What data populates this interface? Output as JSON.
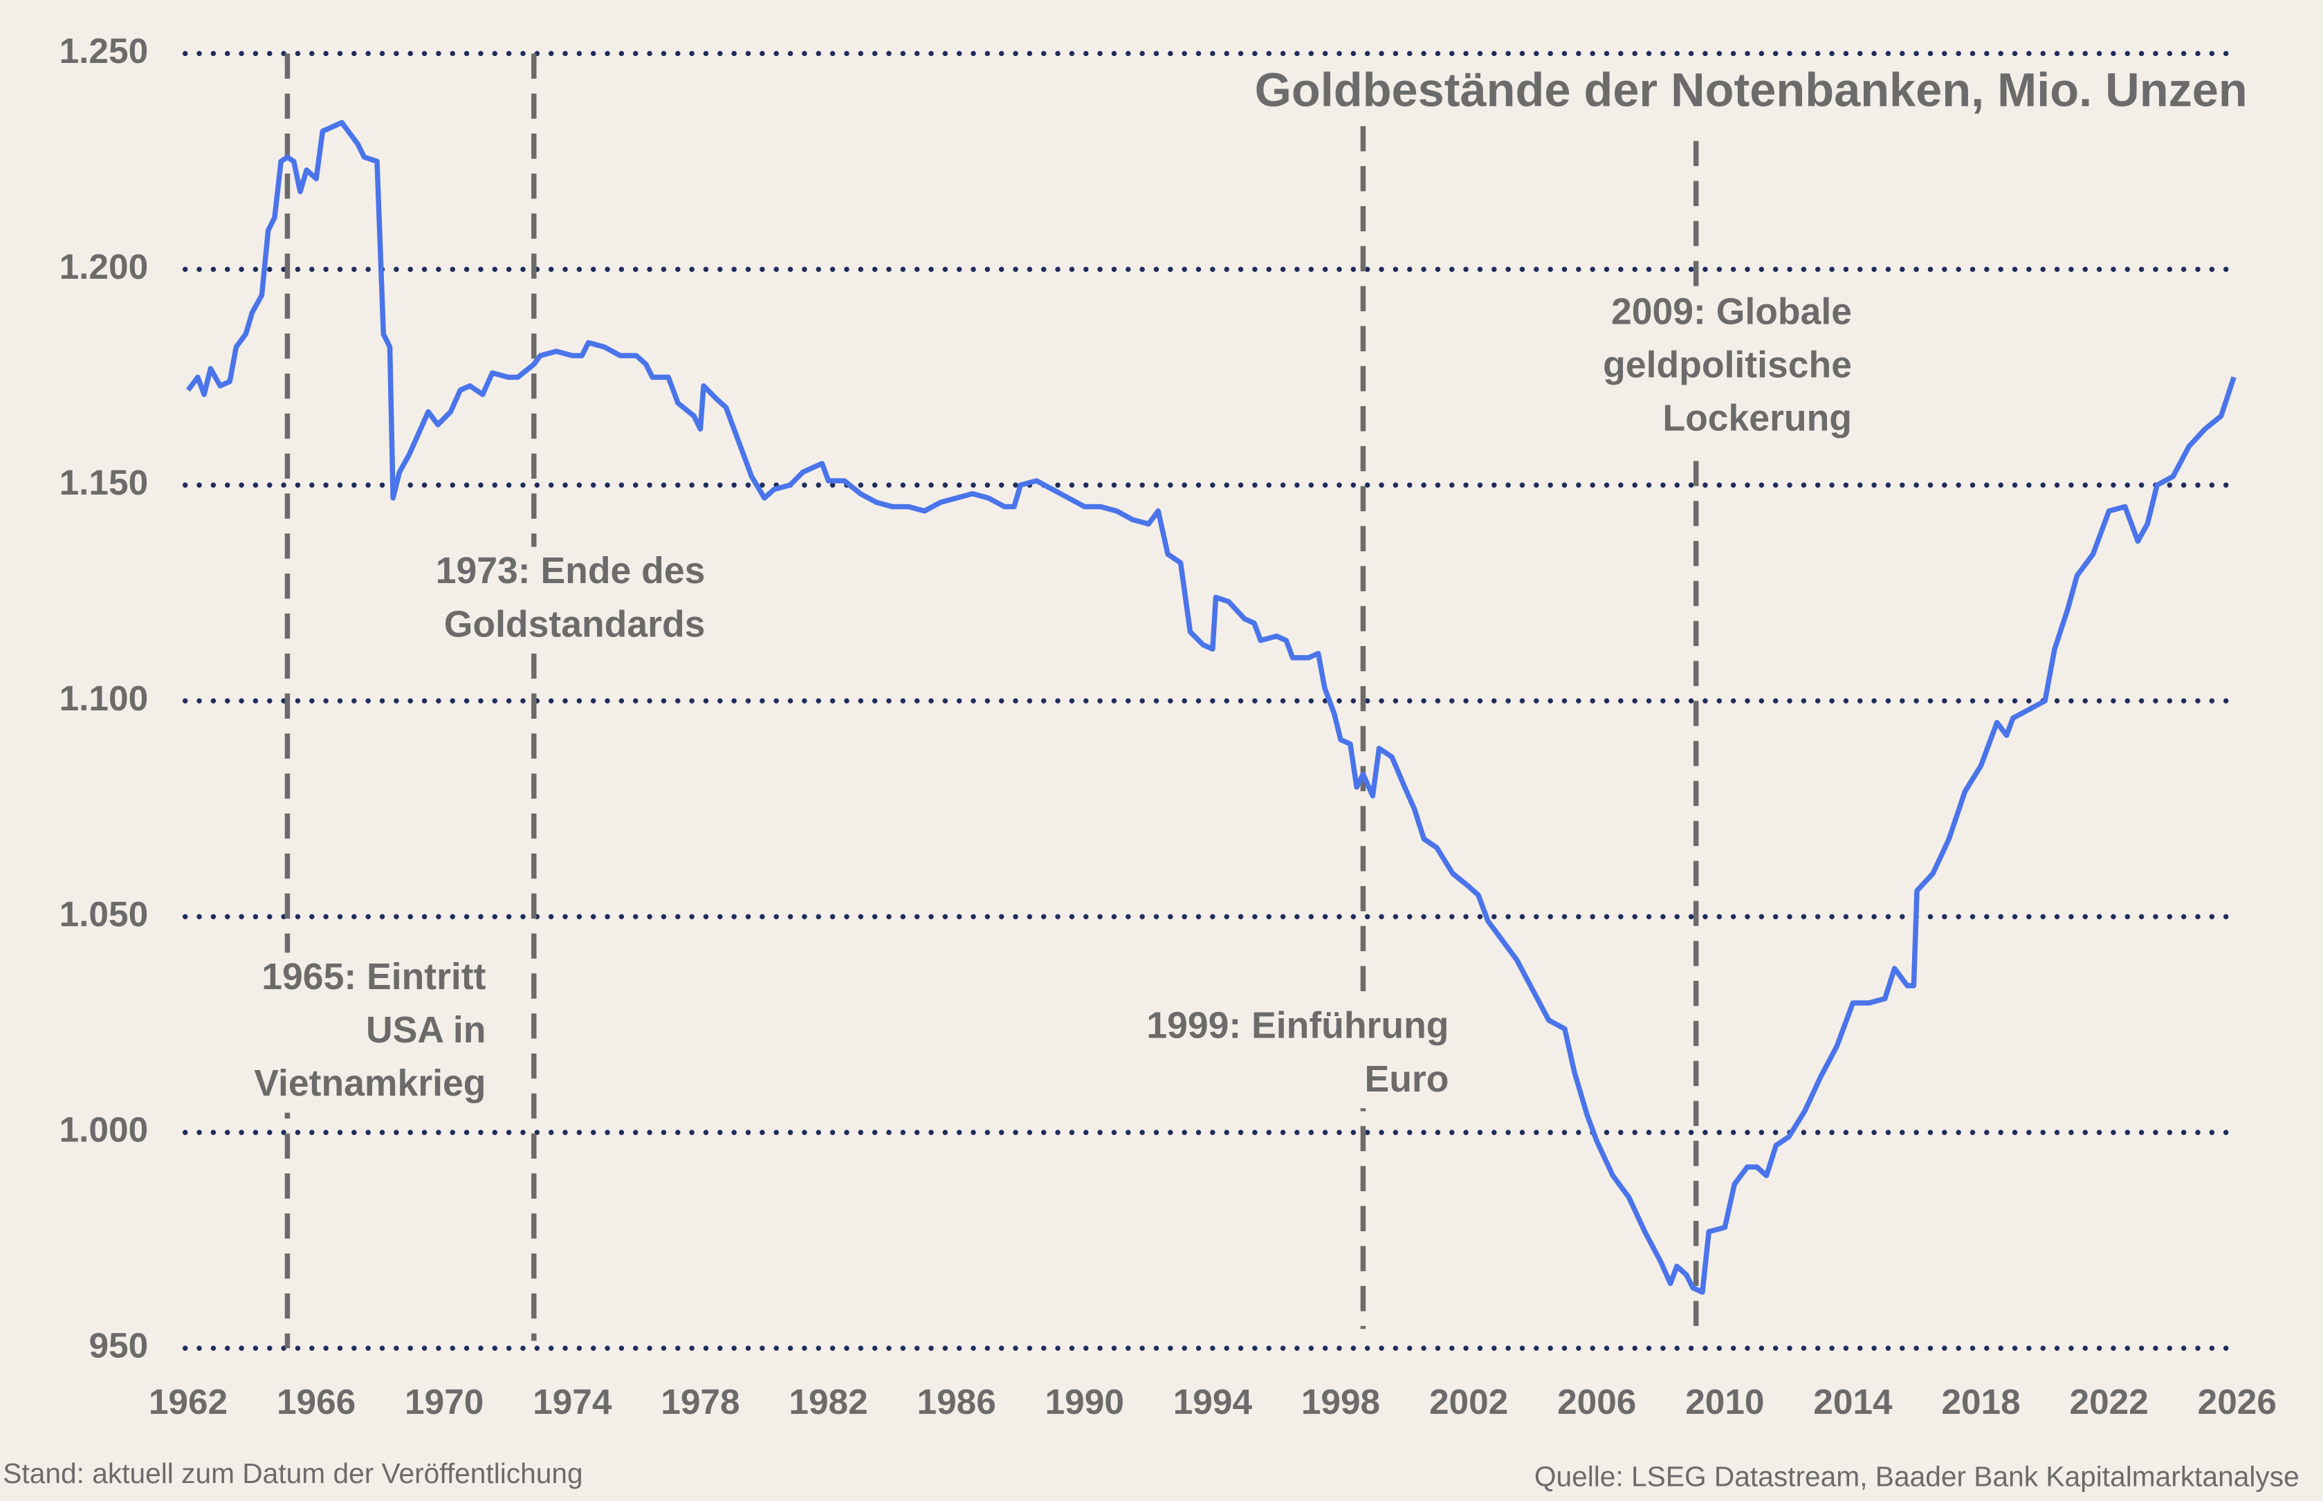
{
  "chart_data": {
    "type": "line",
    "title": "Goldbestände der Notenbanken, Mio. Unzen",
    "footnote": "Stand: aktuell zum Datum der Veröffentlichung",
    "source": "Quelle: LSEG Datastream, Baader Bank Kapitalmarktanalyse",
    "xlim": [
      1962,
      2026
    ],
    "xticks": [
      1962,
      1966,
      1970,
      1974,
      1978,
      1982,
      1986,
      1990,
      1994,
      1998,
      2002,
      2006,
      2010,
      2014,
      2018,
      2022,
      2026
    ],
    "ylim": [
      950,
      1250
    ],
    "yticks": [
      950,
      {
        "value": 1000,
        "label": "1.000"
      },
      {
        "value": 1050,
        "label": "1.050"
      },
      {
        "value": 1100,
        "label": "1.100"
      },
      {
        "value": 1150,
        "label": "1.150"
      },
      {
        "value": 1200,
        "label": "1.200"
      },
      {
        "value": 1250,
        "label": "1.250"
      }
    ],
    "grid": true,
    "events": [
      {
        "x": 1965.1,
        "label": [
          "1965: Eintritt",
          "USA in",
          "Vietnamkrieg"
        ]
      },
      {
        "x": 1972.8,
        "label": [
          "1973: Ende des",
          "Goldstandards"
        ]
      },
      {
        "x": 1998.7,
        "label": [
          "1999: Einführung",
          "Euro"
        ]
      },
      {
        "x": 2009.1,
        "label": [
          "2009: Globale",
          "geldpolitische",
          "Lockerung"
        ]
      }
    ],
    "x": [
      1962.0,
      1962.3,
      1962.5,
      1962.7,
      1963.0,
      1963.3,
      1963.5,
      1963.8,
      1964.0,
      1964.3,
      1964.5,
      1964.7,
      1964.9,
      1965.1,
      1965.3,
      1965.5,
      1965.7,
      1966.0,
      1966.2,
      1966.5,
      1966.8,
      1967.0,
      1967.3,
      1967.5,
      1967.9,
      1968.1,
      1968.3,
      1968.4,
      1968.6,
      1968.9,
      1969.2,
      1969.5,
      1969.8,
      1970.2,
      1970.5,
      1970.8,
      1971.2,
      1971.5,
      1972.0,
      1972.3,
      1972.8,
      1973.0,
      1973.5,
      1974.0,
      1974.3,
      1974.5,
      1975.0,
      1975.5,
      1976.0,
      1976.3,
      1976.5,
      1977.0,
      1977.3,
      1977.8,
      1978.0,
      1978.1,
      1978.5,
      1978.8,
      1979.2,
      1979.6,
      1980.0,
      1980.3,
      1980.8,
      1981.2,
      1981.5,
      1981.8,
      1982.0,
      1982.5,
      1983.0,
      1983.5,
      1984.0,
      1984.5,
      1985.0,
      1985.5,
      1986.0,
      1986.5,
      1987.0,
      1987.5,
      1987.8,
      1988.0,
      1988.5,
      1989.0,
      1989.5,
      1990.0,
      1990.5,
      1991.0,
      1991.5,
      1992.0,
      1992.3,
      1992.6,
      1993.0,
      1993.3,
      1993.7,
      1994.0,
      1994.1,
      1994.5,
      1995.0,
      1995.3,
      1995.5,
      1996.0,
      1996.3,
      1996.5,
      1997.0,
      1997.3,
      1997.5,
      1997.8,
      1998.0,
      1998.3,
      1998.5,
      1998.7,
      1999.0,
      1999.2,
      1999.6,
      2000.0,
      2000.3,
      2000.6,
      2001.0,
      2001.5,
      2002.0,
      2002.3,
      2002.6,
      2003.0,
      2003.5,
      2004.0,
      2004.5,
      2005.0,
      2005.3,
      2005.7,
      2006.0,
      2006.5,
      2007.0,
      2007.5,
      2008.0,
      2008.3,
      2008.5,
      2008.8,
      2009.0,
      2009.3,
      2009.5,
      2010.0,
      2010.3,
      2010.7,
      2011.0,
      2011.3,
      2011.6,
      2012.0,
      2012.5,
      2013.0,
      2013.5,
      2014.0,
      2014.5,
      2015.0,
      2015.3,
      2015.7,
      2015.9,
      2016.0,
      2016.5,
      2017.0,
      2017.5,
      2018.0,
      2018.5,
      2018.8,
      2019.0,
      2019.5,
      2020.0,
      2020.3,
      2020.7,
      2021.0,
      2021.5,
      2022.0,
      2022.5,
      2022.9,
      2023.2,
      2023.5,
      2024.0,
      2024.5,
      2025.0,
      2025.5,
      2025.9
    ],
    "series": [
      {
        "color": "#4a74ea",
        "values": [
          1172,
          1175,
          1171,
          1177,
          1173,
          1174,
          1182,
          1185,
          1190,
          1194,
          1209,
          1212,
          1225,
          1226,
          1225,
          1218,
          1223,
          1221,
          1232,
          1233,
          1234,
          1232,
          1229,
          1226,
          1225,
          1185,
          1182,
          1147,
          1153,
          1157,
          1162,
          1167,
          1164,
          1167,
          1172,
          1173,
          1171,
          1176,
          1175,
          1175,
          1178,
          1180,
          1181,
          1180,
          1180,
          1183,
          1182,
          1180,
          1180,
          1178,
          1175,
          1175,
          1169,
          1166,
          1163,
          1173,
          1170,
          1168,
          1160,
          1152,
          1147,
          1149,
          1150,
          1153,
          1154,
          1155,
          1151,
          1151,
          1148,
          1146,
          1145,
          1145,
          1144,
          1146,
          1147,
          1148,
          1147,
          1145,
          1145,
          1150,
          1151,
          1149,
          1147,
          1145,
          1145,
          1144,
          1142,
          1141,
          1144,
          1134,
          1132,
          1116,
          1113,
          1112,
          1124,
          1123,
          1119,
          1118,
          1114,
          1115,
          1114,
          1110,
          1110,
          1111,
          1103,
          1097,
          1091,
          1090,
          1080,
          1083,
          1078,
          1089,
          1087,
          1080,
          1075,
          1068,
          1066,
          1060,
          1057,
          1055,
          1049,
          1045,
          1040,
          1033,
          1026,
          1024,
          1014,
          1004,
          998,
          990,
          985,
          977,
          970,
          965,
          969,
          967,
          964,
          963,
          977,
          978,
          988,
          992,
          992,
          990,
          997,
          999,
          1005,
          1013,
          1020,
          1030,
          1030,
          1031,
          1038,
          1034,
          1034,
          1056,
          1060,
          1068,
          1079,
          1085,
          1095,
          1092,
          1096,
          1098,
          1100,
          1112,
          1121,
          1129,
          1134,
          1144,
          1145,
          1137,
          1141,
          1150,
          1152,
          1159,
          1163,
          1166,
          1175
        ]
      }
    ]
  }
}
